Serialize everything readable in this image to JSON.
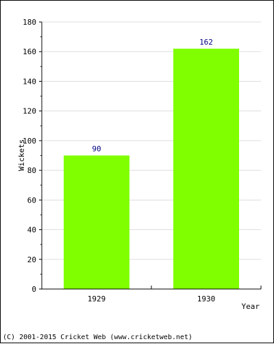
{
  "chart_data": {
    "type": "bar",
    "categories": [
      "1929",
      "1930"
    ],
    "values": [
      90,
      162
    ],
    "data_labels": [
      "90",
      "162"
    ],
    "title": "",
    "xlabel": "Year",
    "ylabel": "Wickets",
    "ylim": [
      0,
      180
    ],
    "yticks": [
      0,
      20,
      40,
      60,
      80,
      100,
      120,
      140,
      160,
      180
    ],
    "ytick_labels": [
      "0",
      "20",
      "40",
      "60",
      "80",
      "100",
      "120",
      "140",
      "160",
      "180"
    ],
    "grid": true,
    "legend": "none"
  },
  "colors": {
    "bar": "#80ff00",
    "label": "#000080",
    "grid": "#dddddd",
    "axis": "#000000"
  },
  "footer": {
    "copyright": "(C) 2001-2015 Cricket Web (www.cricketweb.net)"
  }
}
